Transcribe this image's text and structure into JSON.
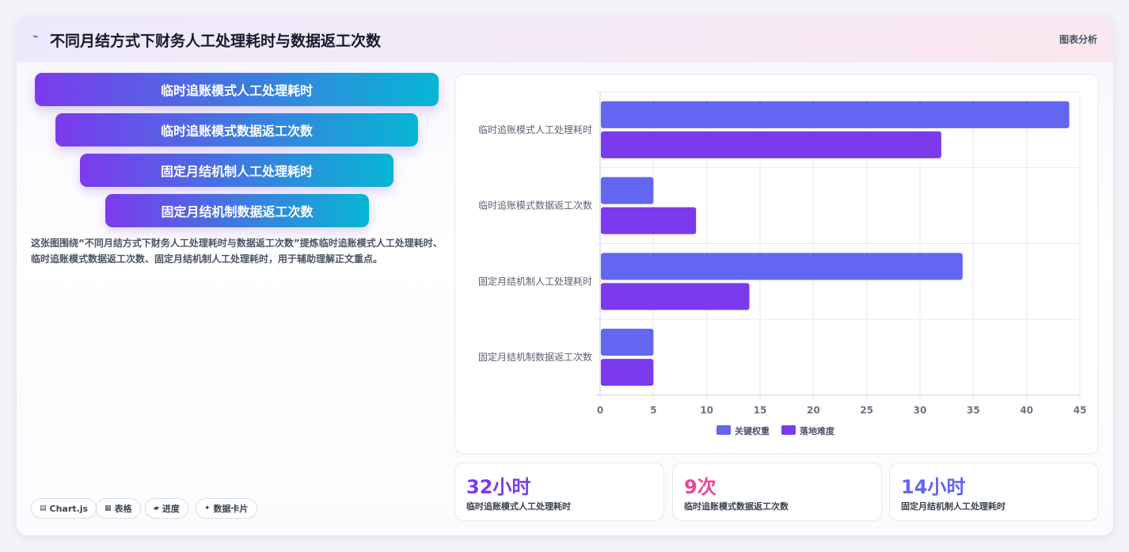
{
  "header": {
    "logo_icon": "trend-line-icon",
    "title": "不同月结方式下财务人工处理耗时与数据返工次数",
    "tag": "图表分析"
  },
  "funnel": [
    {
      "label": "临时追账模式人工处理耗时"
    },
    {
      "label": "临时追账模式数据返工次数"
    },
    {
      "label": "固定月结机制人工处理耗时"
    },
    {
      "label": "固定月结机制数据返工次数"
    }
  ],
  "description": "这张图围绕“不同月结方式下财务人工处理耗时与数据返工次数”提炼临时追账模式人工处理耗时、临时追账模式数据返工次数、固定月结机制人工处理耗时，用于辅助理解正文重点。",
  "pills": [
    {
      "icon": "chart-icon",
      "glyph": "▤",
      "label": "Chart.js"
    },
    {
      "icon": "table-icon",
      "glyph": "▦",
      "label": "表格"
    },
    {
      "icon": "progress-icon",
      "glyph": "▰",
      "label": "进度"
    },
    {
      "icon": "sparkle-icon",
      "glyph": "✦",
      "label": "数据卡片"
    }
  ],
  "stats": [
    {
      "value": "32小时",
      "label": "临时追账模式人工处理耗时",
      "color": "#7c3aed"
    },
    {
      "value": "9次",
      "label": "临时追账模式数据返工次数",
      "color": "#ec4899"
    },
    {
      "value": "14小时",
      "label": "固定月结机制人工处理耗时",
      "color": "#6366f1"
    }
  ],
  "chart_data": {
    "type": "bar",
    "orientation": "horizontal",
    "categories": [
      "临时追账模式人工处理耗时",
      "临时追账模式数据返工次数",
      "固定月结机制人工处理耗时",
      "固定月结机制数据返工次数"
    ],
    "series": [
      {
        "name": "关键权重",
        "color": "#6366f1",
        "values": [
          44,
          5,
          34,
          5
        ]
      },
      {
        "name": "落地难度",
        "color": "#7c3aed",
        "values": [
          32,
          9,
          14,
          5
        ]
      }
    ],
    "xlim": [
      0,
      45
    ],
    "xticks": [
      0,
      5,
      10,
      15,
      20,
      25,
      30,
      35,
      40,
      45
    ],
    "grid": true,
    "legend": "bottom"
  }
}
